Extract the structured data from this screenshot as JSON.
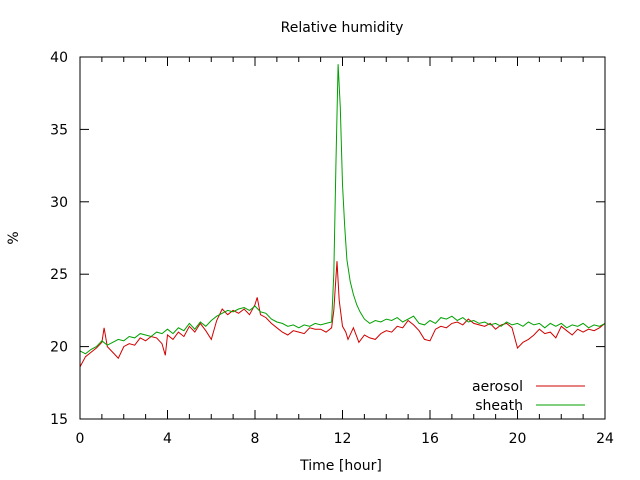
{
  "chart_data": {
    "type": "line",
    "title": "Relative humidity",
    "xlabel": "Time [hour]",
    "ylabel": "%",
    "xlim": [
      0,
      24
    ],
    "ylim": [
      15,
      40
    ],
    "x_ticks": [
      0,
      4,
      8,
      12,
      16,
      20,
      24
    ],
    "y_ticks": [
      15,
      20,
      25,
      30,
      35,
      40
    ],
    "grid": false,
    "legend_position": "bottom-right",
    "series": [
      {
        "name": "aerosol",
        "color": "#d00000",
        "x": [
          0,
          0.25,
          0.5,
          0.75,
          1,
          1.1,
          1.25,
          1.5,
          1.75,
          2,
          2.25,
          2.5,
          2.75,
          3,
          3.25,
          3.5,
          3.75,
          3.9,
          4,
          4.25,
          4.5,
          4.75,
          5,
          5.25,
          5.5,
          5.75,
          6,
          6.25,
          6.5,
          6.75,
          7,
          7.25,
          7.5,
          7.75,
          8,
          8.1,
          8.25,
          8.5,
          8.75,
          9,
          9.25,
          9.5,
          9.75,
          10,
          10.25,
          10.5,
          10.75,
          11,
          11.25,
          11.5,
          11.6,
          11.75,
          11.85,
          12,
          12.15,
          12.25,
          12.5,
          12.75,
          13,
          13.25,
          13.5,
          13.75,
          14,
          14.25,
          14.5,
          14.75,
          15,
          15.25,
          15.5,
          15.75,
          16,
          16.25,
          16.5,
          16.75,
          17,
          17.25,
          17.5,
          17.75,
          18,
          18.25,
          18.5,
          18.75,
          19,
          19.25,
          19.5,
          19.75,
          20,
          20.25,
          20.5,
          20.75,
          21,
          21.25,
          21.5,
          21.75,
          22,
          22.25,
          22.5,
          22.75,
          23,
          23.25,
          23.5,
          23.75,
          24
        ],
        "y": [
          18.6,
          19.3,
          19.6,
          19.9,
          20.3,
          21.3,
          20.0,
          19.6,
          19.2,
          20.0,
          20.2,
          20.1,
          20.6,
          20.4,
          20.7,
          20.6,
          20.2,
          19.4,
          20.8,
          20.5,
          21.0,
          20.7,
          21.4,
          21.0,
          21.6,
          21.1,
          20.5,
          21.8,
          22.6,
          22.2,
          22.5,
          22.3,
          22.6,
          22.2,
          22.9,
          23.4,
          22.2,
          22.0,
          21.6,
          21.3,
          21.0,
          20.8,
          21.1,
          21.0,
          20.9,
          21.3,
          21.2,
          21.2,
          21.0,
          21.3,
          22.5,
          25.9,
          23.2,
          21.4,
          21.0,
          20.5,
          21.3,
          20.3,
          20.8,
          20.6,
          20.5,
          20.9,
          21.1,
          21.0,
          21.4,
          21.3,
          21.8,
          21.5,
          21.1,
          20.5,
          20.4,
          21.2,
          21.4,
          21.3,
          21.6,
          21.7,
          21.5,
          21.9,
          21.6,
          21.5,
          21.4,
          21.6,
          21.2,
          21.5,
          21.6,
          21.3,
          19.9,
          20.3,
          20.5,
          20.8,
          21.2,
          20.9,
          21.0,
          20.6,
          21.4,
          21.1,
          20.8,
          21.2,
          21.0,
          21.2,
          21.1,
          21.3,
          21.6
        ]
      },
      {
        "name": "sheath",
        "color": "#00a000",
        "x": [
          0,
          0.25,
          0.5,
          0.75,
          1,
          1.25,
          1.5,
          1.75,
          2,
          2.25,
          2.5,
          2.75,
          3,
          3.25,
          3.5,
          3.75,
          4,
          4.25,
          4.5,
          4.75,
          5,
          5.25,
          5.5,
          5.75,
          6,
          6.25,
          6.5,
          6.75,
          7,
          7.25,
          7.5,
          7.75,
          8,
          8.25,
          8.5,
          8.75,
          9,
          9.25,
          9.5,
          9.75,
          10,
          10.25,
          10.5,
          10.75,
          11,
          11.25,
          11.5,
          11.6,
          11.7,
          11.8,
          11.9,
          12,
          12.1,
          12.2,
          12.35,
          12.5,
          12.65,
          12.8,
          13,
          13.25,
          13.5,
          13.75,
          14,
          14.25,
          14.5,
          14.75,
          15,
          15.25,
          15.5,
          15.75,
          16,
          16.25,
          16.5,
          16.75,
          17,
          17.25,
          17.5,
          17.75,
          18,
          18.25,
          18.5,
          18.75,
          19,
          19.25,
          19.5,
          19.75,
          20,
          20.25,
          20.5,
          20.75,
          21,
          21.25,
          21.5,
          21.75,
          22,
          22.25,
          22.5,
          22.75,
          23,
          23.25,
          23.5,
          23.75,
          24
        ],
        "y": [
          19.7,
          19.5,
          19.8,
          20.0,
          20.4,
          20.1,
          20.3,
          20.5,
          20.4,
          20.7,
          20.6,
          20.9,
          20.8,
          20.7,
          21.0,
          20.9,
          21.2,
          20.9,
          21.3,
          21.1,
          21.6,
          21.2,
          21.7,
          21.4,
          21.8,
          22.1,
          22.3,
          22.5,
          22.4,
          22.6,
          22.7,
          22.5,
          22.8,
          22.4,
          22.3,
          21.9,
          21.7,
          21.6,
          21.4,
          21.5,
          21.3,
          21.5,
          21.4,
          21.6,
          21.5,
          21.6,
          21.7,
          25.0,
          32.5,
          39.5,
          36.5,
          31.2,
          28.3,
          26.0,
          24.5,
          23.6,
          22.9,
          22.4,
          21.9,
          21.6,
          21.8,
          21.7,
          21.9,
          21.8,
          22.0,
          21.7,
          21.9,
          22.1,
          21.6,
          21.5,
          21.8,
          21.6,
          22.0,
          21.9,
          22.1,
          21.8,
          22.0,
          21.7,
          21.8,
          21.6,
          21.7,
          21.5,
          21.6,
          21.4,
          21.7,
          21.5,
          21.6,
          21.4,
          21.7,
          21.5,
          21.6,
          21.3,
          21.6,
          21.4,
          21.6,
          21.3,
          21.5,
          21.4,
          21.6,
          21.3,
          21.5,
          21.4,
          21.6
        ]
      }
    ]
  }
}
